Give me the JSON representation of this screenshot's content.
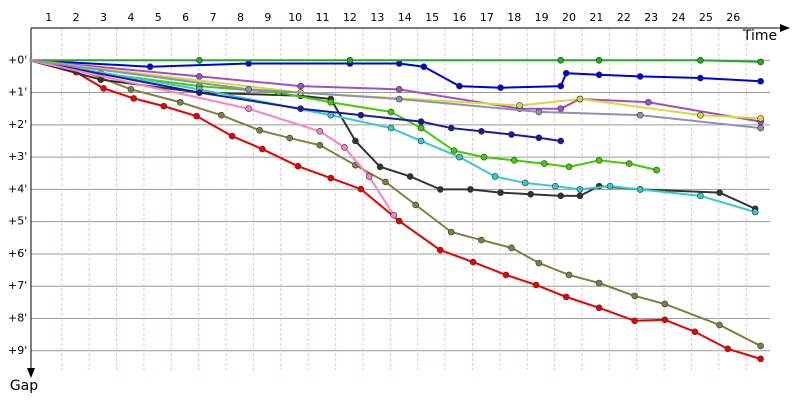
{
  "chart_data": {
    "type": "line",
    "x_label": "Time",
    "y_label": "Gap",
    "xlim": [
      0.35,
      28
    ],
    "xticks": [
      1,
      2,
      3,
      4,
      5,
      6,
      7,
      8,
      9,
      10,
      11,
      12,
      13,
      14,
      15,
      16,
      17,
      18,
      19,
      20,
      21,
      22,
      23,
      24,
      25,
      26
    ],
    "ylim": [
      -1,
      9.75
    ],
    "yticks": [
      {
        "value": 0,
        "label": "+0'"
      },
      {
        "value": 1,
        "label": "+1'"
      },
      {
        "value": 2,
        "label": "+2'"
      },
      {
        "value": 3,
        "label": "+3'"
      },
      {
        "value": 4,
        "label": "+4'"
      },
      {
        "value": 5,
        "label": "+5'"
      },
      {
        "value": 6,
        "label": "+6'"
      },
      {
        "value": 7,
        "label": "+7'"
      },
      {
        "value": 8,
        "label": "+8'"
      },
      {
        "value": 9,
        "label": "+9'"
      }
    ],
    "grid": true,
    "series": [
      {
        "color": "#ee0000",
        "x": [
          0.3,
          2.0,
          3.0,
          4.1,
          5.2,
          6.4,
          7.7,
          8.8,
          10.1,
          11.3,
          12.4,
          13.8,
          15.3,
          16.5,
          17.7,
          18.8,
          19.9,
          21.1,
          22.4,
          23.5,
          24.6,
          25.8,
          27.0
        ],
        "values": [
          0,
          0.37,
          0.87,
          1.18,
          1.42,
          1.73,
          2.35,
          2.75,
          3.28,
          3.65,
          3.99,
          4.98,
          5.88,
          6.25,
          6.65,
          6.96,
          7.33,
          7.67,
          8.07,
          8.04,
          8.41,
          8.94,
          9.25
        ]
      },
      {
        "color": "#808040",
        "x": [
          0.3,
          2.0,
          4.0,
          5.8,
          7.3,
          8.7,
          9.8,
          10.9,
          12.2,
          13.3,
          14.4,
          15.7,
          16.8,
          17.9,
          18.9,
          20.0,
          21.1,
          22.4,
          23.5,
          25.5,
          27.0
        ],
        "values": [
          0,
          0.25,
          0.9,
          1.3,
          1.7,
          2.17,
          2.41,
          2.63,
          3.25,
          3.77,
          4.48,
          5.32,
          5.57,
          5.81,
          6.28,
          6.65,
          6.9,
          7.3,
          7.55,
          8.2,
          8.85
        ]
      },
      {
        "color": "#333333",
        "x": [
          0.3,
          2.9,
          6.5,
          10.2,
          11.3,
          12.2,
          13.1,
          14.2,
          15.3,
          16.4,
          17.5,
          18.6,
          19.7,
          20.4,
          21.1,
          22.6,
          25.5,
          26.8
        ],
        "values": [
          0,
          0.6,
          1.0,
          1.1,
          1.2,
          2.5,
          3.3,
          3.6,
          4.0,
          4.0,
          4.1,
          4.15,
          4.2,
          4.2,
          3.9,
          4.0,
          4.1,
          4.6
        ]
      },
      {
        "color": "#0000dd",
        "x": [
          0.3,
          4.7,
          8.3,
          12.0,
          13.8,
          14.7,
          16.0,
          17.5,
          19.7,
          19.9,
          21.1,
          22.6,
          24.8,
          27.0
        ],
        "values": [
          0,
          0.2,
          0.1,
          0.1,
          0.1,
          0.2,
          0.8,
          0.85,
          0.8,
          0.4,
          0.45,
          0.5,
          0.55,
          0.65
        ]
      },
      {
        "color": "#22aa22",
        "x": [
          0.3,
          6.5,
          12.0,
          19.7,
          21.1,
          24.8,
          27.0
        ],
        "values": [
          0,
          0.0,
          0.0,
          0.0,
          0.0,
          0.0,
          0.05
        ]
      },
      {
        "color": "#44cc00",
        "x": [
          0.3,
          2.9,
          6.5,
          9.4,
          11.3,
          13.5,
          14.6,
          15.8,
          16.9,
          18.0,
          19.1,
          20.0,
          21.1,
          22.2,
          23.2
        ],
        "values": [
          0,
          0.4,
          0.8,
          1.0,
          1.3,
          1.6,
          2.1,
          2.8,
          3.0,
          3.1,
          3.2,
          3.3,
          3.1,
          3.2,
          3.4
        ]
      },
      {
        "color": "#33cccc",
        "x": [
          0.3,
          6.5,
          11.3,
          13.5,
          14.6,
          16.0,
          17.3,
          18.4,
          19.5,
          20.4,
          21.5,
          22.6,
          24.8,
          26.8
        ],
        "values": [
          0,
          0.9,
          1.7,
          2.1,
          2.5,
          3.0,
          3.6,
          3.8,
          3.9,
          4.0,
          3.9,
          4.0,
          4.2,
          4.7
        ]
      },
      {
        "color": "#1a1aa0",
        "x": [
          0.3,
          6.5,
          10.2,
          12.4,
          14.6,
          15.7,
          16.8,
          17.9,
          18.9,
          19.7
        ],
        "values": [
          0,
          1.0,
          1.5,
          1.7,
          1.9,
          2.1,
          2.2,
          2.3,
          2.4,
          2.5
        ]
      },
      {
        "color": "#ff80c0",
        "x": [
          0.3,
          8.3,
          10.9,
          11.8,
          12.7,
          13.6
        ],
        "values": [
          0,
          1.5,
          2.2,
          2.7,
          3.6,
          4.8
        ]
      },
      {
        "color": "#a050c0",
        "x": [
          0.3,
          6.5,
          10.2,
          13.8,
          18.2,
          19.7,
          20.4,
          22.9,
          27.0
        ],
        "values": [
          0,
          0.5,
          0.8,
          0.9,
          1.5,
          1.5,
          1.2,
          1.3,
          1.9
        ]
      },
      {
        "color": "#d8d840",
        "x": [
          0.3,
          10.2,
          18.2,
          20.4,
          24.8,
          27.0
        ],
        "values": [
          0,
          1.0,
          1.4,
          1.2,
          1.7,
          1.8
        ]
      },
      {
        "color": "#9090b0",
        "x": [
          0.3,
          8.3,
          13.8,
          18.9,
          22.6,
          27.0
        ],
        "values": [
          0,
          0.9,
          1.2,
          1.6,
          1.7,
          2.1
        ]
      }
    ]
  }
}
